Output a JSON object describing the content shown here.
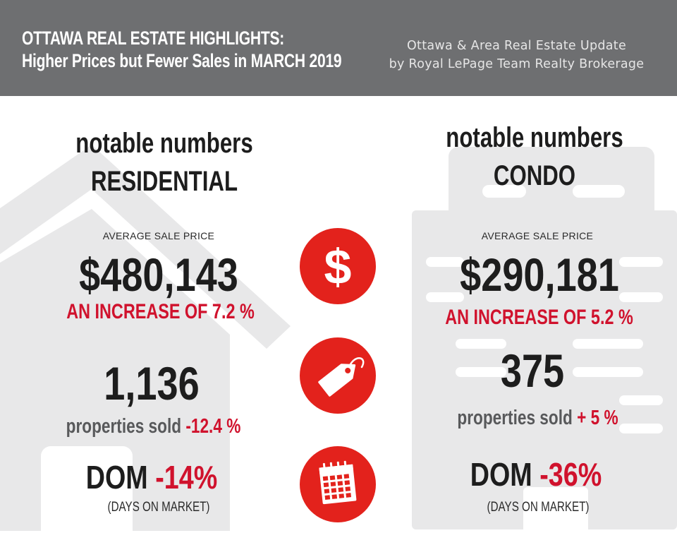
{
  "header": {
    "title_line1": "OTTAWA REAL ESTATE HIGHLIGHTS:",
    "title_line2": "Higher Prices but Fewer Sales in MARCH 2019",
    "subtitle_line1": "Ottawa & Area Real Estate Update",
    "subtitle_line2": "by Royal LePage Team Realty Brokerage"
  },
  "residential": {
    "heading_line1": "notable numbers",
    "heading_line2": "RESIDENTIAL",
    "avg_label": "AVERAGE SALE PRICE",
    "avg_price": "$480,143",
    "avg_change": "AN INCREASE OF 7.2 %",
    "sold_count": "1,136",
    "sold_label": "properties sold",
    "sold_change": "-12.4 %",
    "dom_label": "DOM",
    "dom_change": "-14%",
    "dom_sub": "(DAYS ON MARKET)"
  },
  "condo": {
    "heading_line1": "notable numbers",
    "heading_line2": "CONDO",
    "avg_label": "AVERAGE SALE PRICE",
    "avg_price": "$290,181",
    "avg_change": "AN INCREASE OF 5.2 %",
    "sold_count": "375",
    "sold_label": "properties sold",
    "sold_change": "+ 5 %",
    "dom_label": "DOM",
    "dom_change": "-36%",
    "dom_sub": "(DAYS ON MARKET)"
  },
  "icons": {
    "price": "dollar-icon",
    "sold": "price-tag-icon",
    "dom": "calendar-icon",
    "dollar_glyph": "$"
  },
  "colors": {
    "header_bg": "#6e6f71",
    "accent_red": "#d0122d",
    "icon_red": "#e3221c",
    "background_art": "#e8e8e9"
  }
}
